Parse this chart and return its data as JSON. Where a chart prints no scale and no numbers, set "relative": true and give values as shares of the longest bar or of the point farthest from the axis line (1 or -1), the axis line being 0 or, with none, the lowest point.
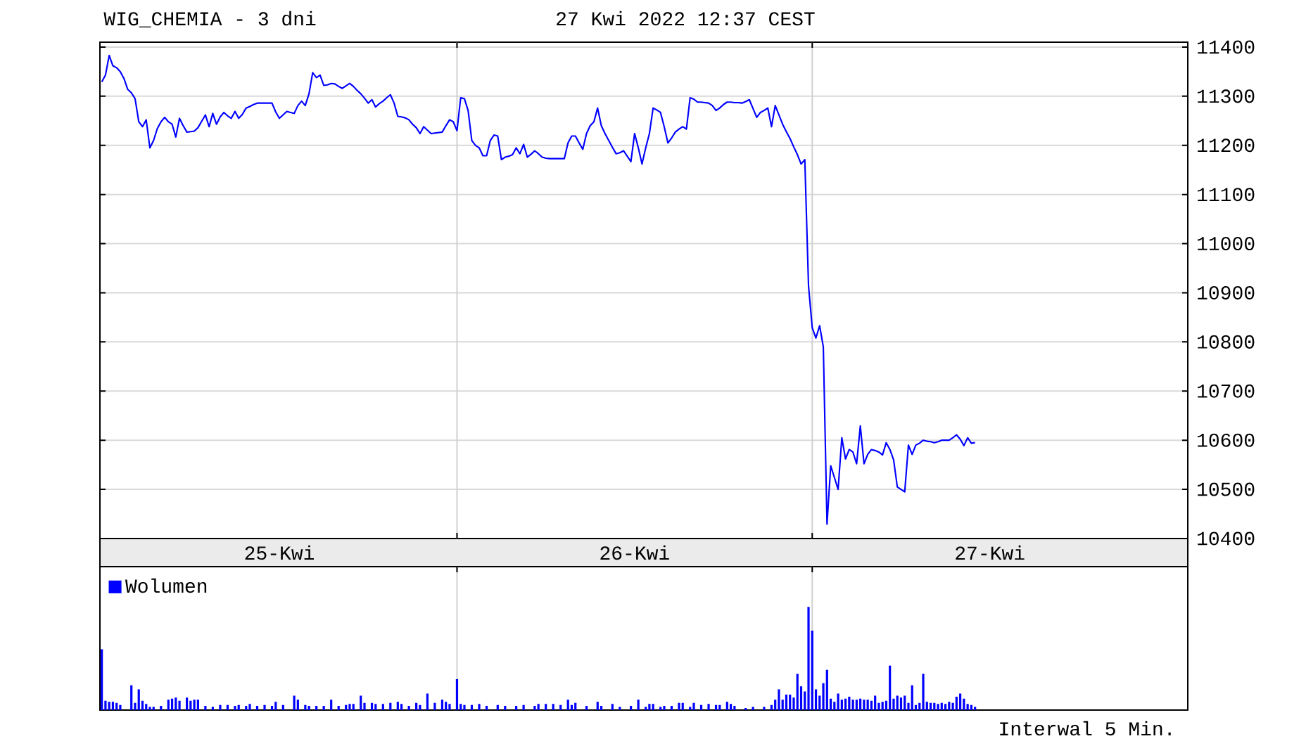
{
  "chart_data": [
    {
      "type": "line",
      "title": "WIG_CHEMIA - 3 dni",
      "subtitle": "27 Kwi 2022 12:37 CEST",
      "color": "#0000ff",
      "categories": [
        null,
        null,
        null,
        null,
        null,
        null,
        null,
        null,
        null,
        null,
        null,
        null,
        null,
        null,
        null,
        null,
        null,
        null,
        null,
        null,
        null,
        null,
        null,
        null,
        null,
        null,
        null,
        null,
        null,
        null,
        null,
        null,
        null,
        null,
        null,
        null,
        null,
        null,
        null,
        null,
        null,
        null,
        null,
        null,
        null,
        null,
        null,
        null,
        "25-Kwi",
        null,
        null,
        null,
        null,
        null,
        null,
        null,
        null,
        null,
        null,
        null,
        null,
        null,
        null,
        null,
        null,
        null,
        null,
        null,
        null,
        null,
        null,
        null,
        null,
        null,
        null,
        null,
        null,
        null,
        null,
        null,
        null,
        null,
        null,
        null,
        null,
        null,
        null,
        null,
        null,
        null,
        null,
        null,
        null,
        null,
        null,
        null,
        null,
        null,
        null,
        null,
        null,
        null,
        null,
        null,
        null,
        null,
        null,
        null,
        null,
        null,
        null,
        null,
        null,
        null,
        null,
        null,
        null,
        null,
        null,
        null,
        null,
        null,
        null,
        null,
        null,
        null,
        null,
        null,
        null,
        null,
        null,
        null,
        null,
        null,
        null,
        null,
        null,
        null,
        null,
        null,
        null,
        null,
        null,
        null,
        "26-Kwi",
        null,
        null,
        null,
        null,
        null,
        null,
        null,
        null,
        null,
        null,
        null,
        null,
        null,
        null,
        null,
        null,
        null,
        null,
        null,
        null,
        null,
        null,
        null,
        null,
        null,
        null,
        null,
        null,
        null,
        null,
        null,
        null,
        null,
        null,
        null,
        null,
        null,
        null,
        null,
        null,
        null,
        null,
        null,
        null,
        null,
        null,
        null,
        null,
        null,
        null,
        null,
        null,
        null,
        null,
        null,
        null,
        null,
        null,
        null,
        null,
        null,
        null,
        null,
        null,
        null,
        null,
        null,
        null,
        null,
        null,
        null,
        null,
        null,
        null,
        null,
        null,
        null,
        null,
        null,
        null,
        null,
        null,
        null,
        null,
        null,
        null,
        null,
        null,
        null,
        null,
        null,
        null,
        null,
        null,
        null,
        "27-Kwi",
        null,
        null,
        null,
        null,
        null,
        null,
        null,
        null,
        null,
        null,
        null,
        null,
        null,
        null,
        null,
        null,
        null,
        null,
        null,
        null,
        null,
        null,
        null,
        null,
        null,
        null,
        null,
        null,
        null,
        null,
        null,
        null,
        null,
        null,
        null,
        null,
        null,
        null,
        null,
        null,
        null,
        null,
        null,
        null,
        null,
        null,
        null,
        null,
        null,
        null,
        null,
        null,
        null
      ],
      "values": [
        11329,
        11343,
        11383,
        11362,
        11358,
        11350,
        11336,
        11314,
        11307,
        11295,
        11248,
        11238,
        11252,
        11195,
        11210,
        11234,
        11248,
        11257,
        11248,
        11243,
        11217,
        11255,
        11240,
        11227,
        11228,
        11229,
        11236,
        11249,
        11262,
        11238,
        11265,
        11243,
        11258,
        11267,
        11260,
        11255,
        11269,
        11255,
        11263,
        11276,
        11279,
        11283,
        11286,
        11286,
        11286,
        11286,
        11286,
        11268,
        11255,
        11262,
        11269,
        11267,
        11265,
        11281,
        11290,
        11281,
        11305,
        11348,
        11338,
        11343,
        11322,
        11323,
        11326,
        11325,
        11320,
        11316,
        11321,
        11326,
        11320,
        11312,
        11305,
        11296,
        11286,
        11293,
        11278,
        11285,
        11290,
        11297,
        11303,
        11286,
        11259,
        11258,
        11256,
        11252,
        11243,
        11236,
        11224,
        11238,
        11231,
        11224,
        11225,
        11226,
        11227,
        11240,
        11252,
        11248,
        11230,
        11297,
        11295,
        11271,
        11210,
        11200,
        11195,
        11179,
        11179,
        11210,
        11221,
        11219,
        11171,
        11176,
        11178,
        11181,
        11195,
        11183,
        11202,
        11176,
        11182,
        11189,
        11183,
        11176,
        11174,
        11173,
        11173,
        11173,
        11173,
        11173,
        11205,
        11219,
        11219,
        11205,
        11192,
        11224,
        11240,
        11248,
        11276,
        11240,
        11224,
        11210,
        11196,
        11183,
        11185,
        11189,
        11178,
        11167,
        11224,
        11195,
        11162,
        11195,
        11224,
        11276,
        11272,
        11267,
        11238,
        11205,
        11215,
        11227,
        11233,
        11238,
        11233,
        11297,
        11294,
        11288,
        11288,
        11287,
        11286,
        11281,
        11271,
        11276,
        11283,
        11288,
        11288,
        11287,
        11287,
        11286,
        11289,
        11293,
        11275,
        11257,
        11267,
        11271,
        11276,
        11238,
        11281,
        11262,
        11243,
        11228,
        11214,
        11197,
        11181,
        11162,
        11171,
        10914,
        10829,
        10808,
        10833,
        10790,
        10429,
        10548,
        10524,
        10500,
        10605,
        10562,
        10581,
        10576,
        10552,
        10629,
        10552,
        10571,
        10581,
        10579,
        10576,
        10570,
        10595,
        10581,
        10560,
        10505,
        10500,
        10495,
        10590,
        10571,
        10590,
        10594,
        10600,
        10598,
        10597,
        10595,
        10597,
        10600,
        10600,
        10600,
        10605,
        10611,
        10602,
        10589,
        10605,
        10594,
        10595,
        null,
        null,
        null,
        null,
        null,
        null,
        null,
        null,
        null,
        null,
        null,
        null,
        null,
        null,
        null,
        null,
        null,
        null,
        null,
        null,
        null,
        null,
        null,
        null,
        null,
        null,
        null,
        null,
        null,
        null,
        null,
        null,
        null,
        null,
        null,
        null,
        null,
        null,
        null,
        null,
        null,
        null,
        null,
        null,
        null,
        null,
        null,
        null,
        null,
        null,
        null,
        null,
        null,
        null,
        null,
        null,
        null
      ],
      "ylim": [
        10400,
        11410
      ],
      "yticks": [
        10400,
        10500,
        10600,
        10700,
        10800,
        10900,
        11000,
        11100,
        11200,
        11300,
        11400
      ],
      "grid": "y"
    },
    {
      "type": "bar",
      "relative": true,
      "legend": "top left",
      "tick_labels": false,
      "annotations": [
        "Interwal 5 Min."
      ],
      "categories": [
        null,
        null,
        null,
        null,
        null,
        null,
        null,
        null,
        null,
        null,
        null,
        null,
        null,
        null,
        null,
        null,
        null,
        null,
        null,
        null,
        null,
        null,
        null,
        null,
        null,
        null,
        null,
        null,
        null,
        null,
        null,
        null,
        null,
        null,
        null,
        null,
        null,
        null,
        null,
        null,
        null,
        null,
        null,
        null,
        null,
        null,
        null,
        null,
        null,
        null,
        null,
        null,
        null,
        null,
        null,
        null,
        null,
        null,
        null,
        null,
        null,
        null,
        null,
        null,
        null,
        null,
        null,
        null,
        null,
        null,
        null,
        null,
        null,
        null,
        null,
        null,
        null,
        null,
        null,
        null,
        null,
        null,
        null,
        null,
        null,
        null,
        null,
        null,
        null,
        null,
        null,
        null,
        null,
        null,
        null,
        null,
        null,
        null,
        null,
        null,
        null,
        null,
        null,
        null,
        null,
        null,
        null,
        null,
        null,
        null,
        null,
        null,
        null,
        null,
        null,
        null,
        null,
        null,
        null,
        null,
        null,
        null,
        null,
        null,
        null,
        null,
        null,
        null,
        null,
        null,
        null,
        null,
        null,
        null,
        null,
        null,
        null,
        null,
        null,
        null,
        null,
        null,
        null,
        null,
        null,
        null,
        null,
        null,
        null,
        null,
        null,
        null,
        null,
        null,
        null,
        null,
        null,
        null,
        null,
        null,
        null,
        null,
        null,
        null,
        null,
        null,
        null,
        null,
        null,
        null,
        null,
        null,
        null,
        null,
        null,
        null,
        null,
        null,
        null,
        null,
        null,
        null,
        null,
        null,
        null,
        null,
        null,
        null,
        null,
        null,
        null,
        null,
        null,
        null,
        null,
        null,
        null,
        null,
        null,
        null,
        null,
        null,
        null,
        null,
        null,
        null,
        null,
        null,
        null,
        null,
        null,
        null,
        null,
        null,
        null,
        null,
        null,
        null,
        null,
        null,
        null,
        null,
        null,
        null,
        null,
        null,
        null,
        null,
        null,
        null,
        null,
        null,
        null,
        null,
        null,
        null,
        null,
        null,
        null,
        null,
        null,
        null,
        null,
        null,
        null,
        null,
        null,
        null,
        null,
        null,
        null,
        null,
        null,
        null,
        null,
        null,
        null,
        null,
        null,
        null,
        null,
        null,
        null,
        null,
        null,
        null,
        null,
        null,
        null,
        null,
        null,
        null,
        null,
        null,
        null,
        null,
        null,
        null,
        null,
        null,
        null,
        null,
        null,
        null,
        null,
        null,
        null,
        null,
        null,
        null,
        null,
        null,
        null,
        null
      ],
      "series": [
        {
          "name": "Wolumen",
          "color": "#0000ff",
          "values": [
            0.59,
            0.09,
            0.08,
            0.08,
            0.07,
            0.05,
            null,
            null,
            0.24,
            0.07,
            0.2,
            0.09,
            0.06,
            0.03,
            0.03,
            null,
            0.04,
            null,
            0.1,
            0.11,
            0.12,
            0.09,
            null,
            0.12,
            0.09,
            0.1,
            0.1,
            null,
            0.04,
            null,
            0.03,
            null,
            0.05,
            null,
            0.05,
            null,
            0.04,
            0.05,
            null,
            0.04,
            0.06,
            null,
            0.04,
            null,
            0.05,
            null,
            0.04,
            0.08,
            null,
            0.05,
            null,
            null,
            0.14,
            0.1,
            null,
            0.05,
            0.04,
            null,
            0.04,
            null,
            0.04,
            null,
            0.1,
            null,
            0.04,
            null,
            0.05,
            0.06,
            0.06,
            null,
            0.14,
            0.07,
            null,
            0.07,
            0.06,
            null,
            0.06,
            null,
            0.07,
            null,
            0.08,
            0.06,
            null,
            0.04,
            null,
            0.07,
            0.05,
            null,
            0.16,
            null,
            0.07,
            null,
            0.1,
            0.08,
            0.06,
            null,
            0.3,
            0.06,
            0.05,
            null,
            0.05,
            null,
            0.06,
            null,
            0.04,
            null,
            null,
            0.05,
            null,
            0.04,
            null,
            null,
            0.04,
            null,
            0.05,
            null,
            null,
            0.04,
            0.06,
            null,
            0.06,
            null,
            0.06,
            null,
            0.05,
            null,
            0.1,
            0.05,
            0.07,
            null,
            null,
            0.04,
            null,
            null,
            0.08,
            0.04,
            null,
            null,
            0.06,
            null,
            0.03,
            null,
            null,
            0.04,
            null,
            0.1,
            null,
            0.03,
            0.06,
            0.06,
            null,
            0.03,
            0.04,
            null,
            0.04,
            null,
            0.07,
            0.07,
            null,
            0.03,
            0.07,
            null,
            0.05,
            null,
            0.06,
            null,
            0.05,
            0.05,
            null,
            0.08,
            0.06,
            0.04,
            null,
            null,
            0.02,
            null,
            0.03,
            null,
            null,
            0.03,
            null,
            0.05,
            0.1,
            0.2,
            0.1,
            0.15,
            0.15,
            0.12,
            0.35,
            0.23,
            0.18,
            1.0,
            0.77,
            0.2,
            0.14,
            0.26,
            0.39,
            0.11,
            0.08,
            0.16,
            0.1,
            0.11,
            0.13,
            0.1,
            0.1,
            0.11,
            0.1,
            0.1,
            0.09,
            0.14,
            0.07,
            0.08,
            0.09,
            0.43,
            0.11,
            0.14,
            0.12,
            0.14,
            0.07,
            0.24,
            0.05,
            0.07,
            0.35,
            0.08,
            0.07,
            0.07,
            0.06,
            0.07,
            0.06,
            0.08,
            0.07,
            0.13,
            0.16,
            0.11,
            0.06,
            0.05,
            0.03,
            null,
            null,
            null,
            null,
            null,
            null,
            null,
            null,
            null,
            null,
            null,
            null,
            null,
            null,
            null,
            null,
            null,
            null,
            null,
            null,
            null,
            null,
            null,
            null,
            null,
            null,
            null,
            null,
            null,
            null,
            null,
            null,
            null,
            null,
            null,
            null,
            null,
            null,
            null,
            null,
            null,
            null,
            null,
            null,
            null,
            null,
            null,
            null,
            null,
            null,
            null,
            null,
            null,
            null,
            null,
            null,
            null
          ]
        }
      ]
    }
  ]
}
